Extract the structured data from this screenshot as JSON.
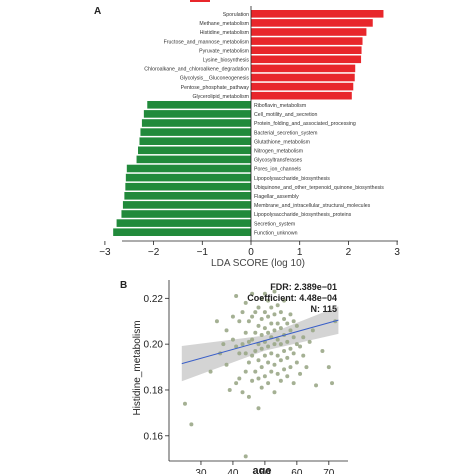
{
  "chart_data": [
    {
      "type": "bar",
      "panel_label": "A",
      "xlabel": "LDA SCORE (log 10)",
      "xlim": [
        -3,
        3
      ],
      "xticks": [
        -3,
        -2,
        -1,
        0,
        1,
        2,
        3
      ],
      "grid": false,
      "series": [
        {
          "color": "#e8262b",
          "categories": [
            "Sporulation",
            "Methane_metabolism",
            "Histidine_metabolism",
            "Fructose_and_mannose_metabolism",
            "Pyruvate_metabolism",
            "Lysine_biosynthesis",
            "Chloroalkane_and_chloroalkene_degradation",
            "Glycolysis__Gluconeogenesis",
            "Pentose_phosphate_pathway",
            "Glycerolipid_metabolism"
          ],
          "values": [
            2.72,
            2.5,
            2.37,
            2.29,
            2.27,
            2.26,
            2.14,
            2.13,
            2.1,
            2.07
          ]
        },
        {
          "color": "#218a3b",
          "categories": [
            "Riboflavin_metabolism",
            "Cell_motility_and_secretion",
            "Protein_folding_and_associated_processing",
            "Bacterial_secretion_system",
            "Glutathione_metabolism",
            "Nitrogen_metabolism",
            "Glycosyltransferases",
            "Pores_ion_channels",
            "Lipopolysaccharide_biosynthesis",
            "Ubiquinone_and_other_terpenoid_quinone_biosynthesis",
            "Flagellar_assembly",
            "Membrane_and_intracellular_structural_molecules",
            "Lipopolysaccharide_biosynthesis_proteins",
            "Secretion_system",
            "Function_unknown"
          ],
          "values": [
            -2.13,
            -2.2,
            -2.24,
            -2.27,
            -2.29,
            -2.32,
            -2.35,
            -2.55,
            -2.57,
            -2.58,
            -2.6,
            -2.63,
            -2.66,
            -2.76,
            -2.83
          ]
        }
      ]
    },
    {
      "type": "scatter",
      "panel_label": "B",
      "xlabel": "age",
      "ylabel": "Histidine_metabolism",
      "xlim": [
        20,
        76
      ],
      "ylim": [
        0.149,
        0.228
      ],
      "xticks": [
        30,
        40,
        50,
        60,
        70
      ],
      "yticks": [
        0.16,
        0.18,
        0.2,
        0.22
      ],
      "annotations": [
        "FDR: 2.389e−01",
        "Coefficient: 4.48e−04",
        "N: 115"
      ],
      "point_color": "#9aa787",
      "fit_color": "#3a5fc8",
      "band_color": "#c9c9c9",
      "fit": {
        "x": [
          24,
          73
        ],
        "y": [
          0.1915,
          0.2105
        ]
      },
      "band": {
        "x": [
          24,
          50,
          73
        ],
        "upper": [
          0.1992,
          0.2038,
          0.2165
        ],
        "lower": [
          0.1838,
          0.1972,
          0.2045
        ]
      },
      "points": [
        [
          25,
          0.174
        ],
        [
          27,
          0.165
        ],
        [
          33,
          0.188
        ],
        [
          35,
          0.21
        ],
        [
          36,
          0.196
        ],
        [
          37,
          0.2
        ],
        [
          38,
          0.191
        ],
        [
          38,
          0.206
        ],
        [
          39,
          0.18
        ],
        [
          40,
          0.202
        ],
        [
          40,
          0.212
        ],
        [
          41,
          0.183
        ],
        [
          41,
          0.199
        ],
        [
          41,
          0.221
        ],
        [
          42,
          0.185
        ],
        [
          42,
          0.196
        ],
        [
          42,
          0.21
        ],
        [
          43,
          0.179
        ],
        [
          43,
          0.2
        ],
        [
          43,
          0.214
        ],
        [
          44,
          0.188
        ],
        [
          44,
          0.196
        ],
        [
          44,
          0.205
        ],
        [
          44,
          0.218
        ],
        [
          45,
          0.177
        ],
        [
          45,
          0.192
        ],
        [
          45,
          0.201
        ],
        [
          45,
          0.21
        ],
        [
          46,
          0.184
        ],
        [
          46,
          0.195
        ],
        [
          46,
          0.202
        ],
        [
          46,
          0.212
        ],
        [
          46,
          0.222
        ],
        [
          47,
          0.188
        ],
        [
          47,
          0.197
        ],
        [
          47,
          0.205
        ],
        [
          47,
          0.214
        ],
        [
          48,
          0.172
        ],
        [
          48,
          0.185
        ],
        [
          48,
          0.193
        ],
        [
          48,
          0.2
        ],
        [
          48,
          0.208
        ],
        [
          48,
          0.216
        ],
        [
          49,
          0.181
        ],
        [
          49,
          0.19
        ],
        [
          49,
          0.198
        ],
        [
          49,
          0.204
        ],
        [
          49,
          0.211
        ],
        [
          49,
          0.22
        ],
        [
          50,
          0.186
        ],
        [
          50,
          0.195
        ],
        [
          50,
          0.201
        ],
        [
          50,
          0.207
        ],
        [
          50,
          0.214
        ],
        [
          50,
          0.222
        ],
        [
          51,
          0.183
        ],
        [
          51,
          0.192
        ],
        [
          51,
          0.199
        ],
        [
          51,
          0.205
        ],
        [
          51,
          0.212
        ],
        [
          51,
          0.219
        ],
        [
          52,
          0.188
        ],
        [
          52,
          0.196
        ],
        [
          52,
          0.203
        ],
        [
          52,
          0.209
        ],
        [
          52,
          0.216
        ],
        [
          53,
          0.179
        ],
        [
          53,
          0.191
        ],
        [
          53,
          0.2
        ],
        [
          53,
          0.206
        ],
        [
          53,
          0.213
        ],
        [
          53,
          0.223
        ],
        [
          54,
          0.187
        ],
        [
          54,
          0.195
        ],
        [
          54,
          0.202
        ],
        [
          54,
          0.209
        ],
        [
          54,
          0.217
        ],
        [
          55,
          0.184
        ],
        [
          55,
          0.193
        ],
        [
          55,
          0.2
        ],
        [
          55,
          0.207
        ],
        [
          55,
          0.214
        ],
        [
          56,
          0.189
        ],
        [
          56,
          0.197
        ],
        [
          56,
          0.204
        ],
        [
          56,
          0.211
        ],
        [
          56,
          0.219
        ],
        [
          57,
          0.186
        ],
        [
          57,
          0.194
        ],
        [
          57,
          0.201
        ],
        [
          57,
          0.209
        ],
        [
          58,
          0.19
        ],
        [
          58,
          0.198
        ],
        [
          58,
          0.206
        ],
        [
          58,
          0.213
        ],
        [
          59,
          0.183
        ],
        [
          59,
          0.196
        ],
        [
          59,
          0.203
        ],
        [
          59,
          0.21
        ],
        [
          60,
          0.192
        ],
        [
          60,
          0.2
        ],
        [
          60,
          0.208
        ],
        [
          61,
          0.187
        ],
        [
          61,
          0.199
        ],
        [
          62,
          0.203
        ],
        [
          62,
          0.195
        ],
        [
          63,
          0.19
        ],
        [
          64,
          0.201
        ],
        [
          65,
          0.206
        ],
        [
          66,
          0.182
        ],
        [
          68,
          0.197
        ],
        [
          70,
          0.19
        ],
        [
          44,
          0.151
        ],
        [
          71,
          0.183
        ],
        [
          72,
          0.21
        ]
      ]
    }
  ]
}
